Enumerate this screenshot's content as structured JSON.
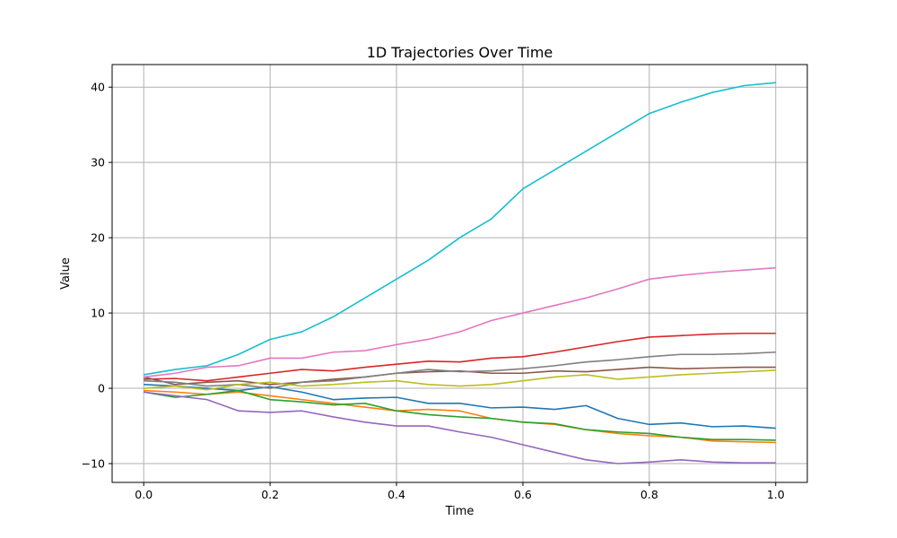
{
  "chart_data": {
    "type": "line",
    "title": "1D Trajectories Over Time",
    "xlabel": "Time",
    "ylabel": "Value",
    "xlim": [
      -0.05,
      1.05
    ],
    "ylim": [
      -12.5,
      43.0
    ],
    "xticks": [
      0.0,
      0.2,
      0.4,
      0.6,
      0.8,
      1.0
    ],
    "xtick_labels": [
      "0.0",
      "0.2",
      "0.4",
      "0.6",
      "0.8",
      "1.0"
    ],
    "yticks": [
      -10,
      0,
      10,
      20,
      30,
      40
    ],
    "ytick_labels": [
      "−10",
      "0",
      "10",
      "20",
      "30",
      "40"
    ],
    "grid": true,
    "legend": "none",
    "series": [
      {
        "color": "#1f77b4",
        "points": [
          [
            0.0,
            0.5
          ],
          [
            0.05,
            0.3
          ],
          [
            0.1,
            0.0
          ],
          [
            0.15,
            -0.3
          ],
          [
            0.2,
            0.2
          ],
          [
            0.25,
            -0.5
          ],
          [
            0.3,
            -1.5
          ],
          [
            0.35,
            -1.3
          ],
          [
            0.4,
            -1.2
          ],
          [
            0.45,
            -2.0
          ],
          [
            0.5,
            -2.0
          ],
          [
            0.55,
            -2.6
          ],
          [
            0.6,
            -2.5
          ],
          [
            0.65,
            -2.8
          ],
          [
            0.7,
            -2.3
          ],
          [
            0.75,
            -4.0
          ],
          [
            0.8,
            -4.8
          ],
          [
            0.85,
            -4.6
          ],
          [
            0.9,
            -5.1
          ],
          [
            0.95,
            -5.0
          ],
          [
            1.0,
            -5.3
          ]
        ]
      },
      {
        "color": "#ff7f0e",
        "points": [
          [
            0.0,
            -0.3
          ],
          [
            0.05,
            -0.5
          ],
          [
            0.1,
            -0.8
          ],
          [
            0.15,
            -0.5
          ],
          [
            0.2,
            -1.0
          ],
          [
            0.25,
            -1.5
          ],
          [
            0.3,
            -2.0
          ],
          [
            0.35,
            -2.5
          ],
          [
            0.4,
            -3.0
          ],
          [
            0.45,
            -2.8
          ],
          [
            0.5,
            -3.0
          ],
          [
            0.55,
            -4.0
          ],
          [
            0.6,
            -4.5
          ],
          [
            0.65,
            -4.8
          ],
          [
            0.7,
            -5.5
          ],
          [
            0.75,
            -6.0
          ],
          [
            0.8,
            -6.3
          ],
          [
            0.85,
            -6.5
          ],
          [
            0.9,
            -7.0
          ],
          [
            0.95,
            -7.1
          ],
          [
            1.0,
            -7.2
          ]
        ]
      },
      {
        "color": "#2ca02c",
        "points": [
          [
            0.0,
            -0.5
          ],
          [
            0.05,
            -1.2
          ],
          [
            0.1,
            -0.8
          ],
          [
            0.15,
            -0.3
          ],
          [
            0.2,
            -1.5
          ],
          [
            0.25,
            -1.8
          ],
          [
            0.3,
            -2.2
          ],
          [
            0.35,
            -2.0
          ],
          [
            0.4,
            -3.0
          ],
          [
            0.45,
            -3.5
          ],
          [
            0.5,
            -3.8
          ],
          [
            0.55,
            -4.0
          ],
          [
            0.6,
            -4.5
          ],
          [
            0.65,
            -4.7
          ],
          [
            0.7,
            -5.5
          ],
          [
            0.75,
            -5.8
          ],
          [
            0.8,
            -6.0
          ],
          [
            0.85,
            -6.5
          ],
          [
            0.9,
            -6.8
          ],
          [
            0.95,
            -6.8
          ],
          [
            1.0,
            -6.9
          ]
        ]
      },
      {
        "color": "#d62728",
        "points": [
          [
            0.0,
            1.2
          ],
          [
            0.05,
            1.3
          ],
          [
            0.1,
            1.0
          ],
          [
            0.15,
            1.5
          ],
          [
            0.2,
            2.0
          ],
          [
            0.25,
            2.5
          ],
          [
            0.3,
            2.3
          ],
          [
            0.35,
            2.8
          ],
          [
            0.4,
            3.2
          ],
          [
            0.45,
            3.6
          ],
          [
            0.5,
            3.5
          ],
          [
            0.55,
            4.0
          ],
          [
            0.6,
            4.2
          ],
          [
            0.65,
            4.8
          ],
          [
            0.7,
            5.5
          ],
          [
            0.75,
            6.2
          ],
          [
            0.8,
            6.8
          ],
          [
            0.85,
            7.0
          ],
          [
            0.9,
            7.2
          ],
          [
            0.95,
            7.3
          ],
          [
            1.0,
            7.3
          ]
        ]
      },
      {
        "color": "#9467bd",
        "points": [
          [
            0.0,
            -0.5
          ],
          [
            0.05,
            -1.0
          ],
          [
            0.1,
            -1.5
          ],
          [
            0.15,
            -3.0
          ],
          [
            0.2,
            -3.2
          ],
          [
            0.25,
            -3.0
          ],
          [
            0.3,
            -3.8
          ],
          [
            0.35,
            -4.5
          ],
          [
            0.4,
            -5.0
          ],
          [
            0.45,
            -5.0
          ],
          [
            0.5,
            -5.8
          ],
          [
            0.55,
            -6.5
          ],
          [
            0.6,
            -7.5
          ],
          [
            0.65,
            -8.5
          ],
          [
            0.7,
            -9.5
          ],
          [
            0.75,
            -10.0
          ],
          [
            0.8,
            -9.8
          ],
          [
            0.85,
            -9.5
          ],
          [
            0.9,
            -9.8
          ],
          [
            0.95,
            -9.9
          ],
          [
            1.0,
            -9.9
          ]
        ]
      },
      {
        "color": "#8c564b",
        "points": [
          [
            0.0,
            1.5
          ],
          [
            0.05,
            0.5
          ],
          [
            0.1,
            0.8
          ],
          [
            0.15,
            1.0
          ],
          [
            0.2,
            0.5
          ],
          [
            0.25,
            0.8
          ],
          [
            0.3,
            1.2
          ],
          [
            0.35,
            1.5
          ],
          [
            0.4,
            2.0
          ],
          [
            0.45,
            2.2
          ],
          [
            0.5,
            2.3
          ],
          [
            0.55,
            2.0
          ],
          [
            0.6,
            2.0
          ],
          [
            0.65,
            2.3
          ],
          [
            0.7,
            2.2
          ],
          [
            0.75,
            2.5
          ],
          [
            0.8,
            2.8
          ],
          [
            0.85,
            2.6
          ],
          [
            0.9,
            2.7
          ],
          [
            0.95,
            2.8
          ],
          [
            1.0,
            2.8
          ]
        ]
      },
      {
        "color": "#e377c2",
        "points": [
          [
            0.0,
            1.5
          ],
          [
            0.05,
            2.0
          ],
          [
            0.1,
            2.8
          ],
          [
            0.15,
            3.0
          ],
          [
            0.2,
            4.0
          ],
          [
            0.25,
            4.0
          ],
          [
            0.3,
            4.8
          ],
          [
            0.35,
            5.0
          ],
          [
            0.4,
            5.8
          ],
          [
            0.45,
            6.5
          ],
          [
            0.5,
            7.5
          ],
          [
            0.55,
            9.0
          ],
          [
            0.6,
            10.0
          ],
          [
            0.65,
            11.0
          ],
          [
            0.7,
            12.0
          ],
          [
            0.75,
            13.2
          ],
          [
            0.8,
            14.5
          ],
          [
            0.85,
            15.0
          ],
          [
            0.9,
            15.4
          ],
          [
            0.95,
            15.7
          ],
          [
            1.0,
            16.0
          ]
        ]
      },
      {
        "color": "#7f7f7f",
        "points": [
          [
            0.0,
            1.0
          ],
          [
            0.05,
            0.8
          ],
          [
            0.1,
            0.3
          ],
          [
            0.15,
            0.5
          ],
          [
            0.2,
            0.0
          ],
          [
            0.25,
            0.8
          ],
          [
            0.3,
            1.0
          ],
          [
            0.35,
            1.5
          ],
          [
            0.4,
            2.0
          ],
          [
            0.45,
            2.5
          ],
          [
            0.5,
            2.2
          ],
          [
            0.55,
            2.3
          ],
          [
            0.6,
            2.6
          ],
          [
            0.65,
            3.0
          ],
          [
            0.7,
            3.5
          ],
          [
            0.75,
            3.8
          ],
          [
            0.8,
            4.2
          ],
          [
            0.85,
            4.5
          ],
          [
            0.9,
            4.5
          ],
          [
            0.95,
            4.6
          ],
          [
            1.0,
            4.8
          ]
        ]
      },
      {
        "color": "#bcbd22",
        "points": [
          [
            0.0,
            0.0
          ],
          [
            0.05,
            0.3
          ],
          [
            0.1,
            -0.2
          ],
          [
            0.15,
            0.5
          ],
          [
            0.2,
            0.8
          ],
          [
            0.25,
            0.3
          ],
          [
            0.3,
            0.5
          ],
          [
            0.35,
            0.8
          ],
          [
            0.4,
            1.0
          ],
          [
            0.45,
            0.5
          ],
          [
            0.5,
            0.3
          ],
          [
            0.55,
            0.5
          ],
          [
            0.6,
            1.0
          ],
          [
            0.65,
            1.5
          ],
          [
            0.7,
            1.8
          ],
          [
            0.75,
            1.2
          ],
          [
            0.8,
            1.5
          ],
          [
            0.85,
            1.8
          ],
          [
            0.9,
            2.0
          ],
          [
            0.95,
            2.2
          ],
          [
            1.0,
            2.4
          ]
        ]
      },
      {
        "color": "#17becf",
        "points": [
          [
            0.0,
            1.8
          ],
          [
            0.05,
            2.5
          ],
          [
            0.1,
            3.0
          ],
          [
            0.15,
            4.5
          ],
          [
            0.2,
            6.5
          ],
          [
            0.25,
            7.5
          ],
          [
            0.3,
            9.5
          ],
          [
            0.35,
            12.0
          ],
          [
            0.4,
            14.5
          ],
          [
            0.45,
            17.0
          ],
          [
            0.5,
            20.0
          ],
          [
            0.55,
            22.5
          ],
          [
            0.6,
            26.5
          ],
          [
            0.65,
            29.0
          ],
          [
            0.7,
            31.5
          ],
          [
            0.75,
            34.0
          ],
          [
            0.8,
            36.5
          ],
          [
            0.85,
            38.0
          ],
          [
            0.9,
            39.3
          ],
          [
            0.95,
            40.2
          ],
          [
            1.0,
            40.6
          ]
        ]
      }
    ]
  }
}
